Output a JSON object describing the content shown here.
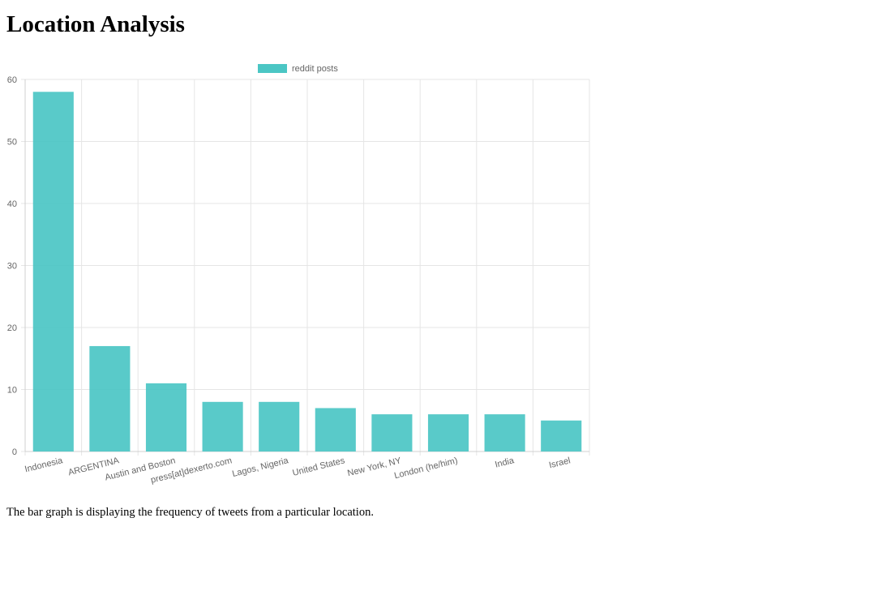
{
  "page": {
    "title": "Location Analysis",
    "caption": "The bar graph is displaying the frequency of tweets from a particular location."
  },
  "colors": {
    "bar": "#4bc6c4",
    "grid": "#e5e5e5",
    "axis_text": "#666666"
  },
  "chart_data": {
    "type": "bar",
    "title": "",
    "xlabel": "",
    "ylabel": "",
    "categories": [
      "Indonesia",
      "ARGENTINA",
      "Austin and Boston",
      "press[at]dexerto.com",
      "Lagos, Nigeria",
      "United States",
      "New York, NY",
      "London (he/him)",
      "India",
      "Israel"
    ],
    "series": [
      {
        "name": "reddit posts",
        "values": [
          58,
          17,
          11,
          8,
          8,
          7,
          6,
          6,
          6,
          5
        ]
      }
    ],
    "ylim": [
      0,
      60
    ],
    "yticks": [
      0,
      10,
      20,
      30,
      40,
      50,
      60
    ],
    "grid": true,
    "legend": "top-center"
  }
}
